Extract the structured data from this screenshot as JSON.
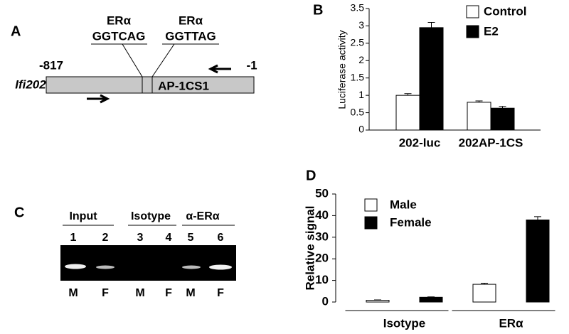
{
  "panel_a": {
    "label": "A",
    "sites": [
      {
        "name": "ERα",
        "sequence": "GGTCAG"
      },
      {
        "name": "ERα",
        "sequence": "GGTTAG"
      }
    ],
    "start": "-817",
    "end": "-1",
    "gene": "Ifi202",
    "element": "AP-1CS1"
  },
  "panel_c": {
    "label": "C",
    "groups": [
      "Input",
      "Isotype",
      "α-ERα"
    ],
    "lanes": [
      1,
      2,
      3,
      4,
      5,
      6
    ],
    "sexes": [
      "M",
      "F",
      "M",
      "F",
      "M",
      "F"
    ]
  },
  "chart_data": [
    {
      "type": "bar",
      "panel": "B",
      "ylabel": "Luciferase activity",
      "categories": [
        "202-luc",
        "202AP-1CS"
      ],
      "series": [
        {
          "name": "Control",
          "color": "#ffffff",
          "values": [
            1.0,
            0.8
          ],
          "errors": [
            0.05,
            0.04
          ]
        },
        {
          "name": "E2",
          "color": "#000000",
          "values": [
            2.95,
            0.63
          ],
          "errors": [
            0.15,
            0.05
          ]
        }
      ],
      "ylim": [
        0,
        3.5
      ],
      "yticks": [
        0,
        0.5,
        1,
        1.5,
        2,
        2.5,
        3,
        3.5
      ],
      "legend": "top-right"
    },
    {
      "type": "bar",
      "panel": "D",
      "ylabel": "Relative signal",
      "categories": [
        "Isotype",
        "ERα"
      ],
      "series": [
        {
          "name": "Male",
          "color": "#ffffff",
          "values": [
            0.8,
            8.2
          ],
          "errors": [
            0.2,
            0.5
          ]
        },
        {
          "name": "Female",
          "color": "#000000",
          "values": [
            2.2,
            38
          ],
          "errors": [
            0.2,
            1.5
          ]
        }
      ],
      "ylim": [
        0,
        50
      ],
      "yticks": [
        0,
        10,
        20,
        30,
        40,
        50
      ],
      "legend": "top-left"
    }
  ]
}
